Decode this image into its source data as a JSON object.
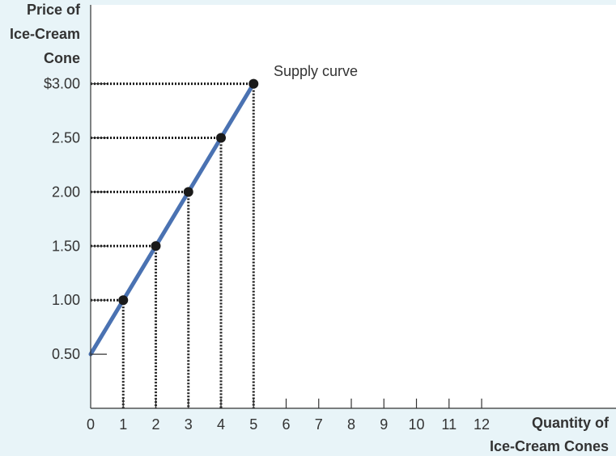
{
  "chart_data": {
    "type": "line",
    "title": "",
    "series": [
      {
        "name": "Supply curve",
        "x": [
          0,
          1,
          2,
          3,
          4,
          5
        ],
        "y": [
          0.5,
          1.0,
          1.5,
          2.0,
          2.5,
          3.0
        ]
      }
    ],
    "points": [
      {
        "x": 1,
        "y": 1.0
      },
      {
        "x": 2,
        "y": 1.5
      },
      {
        "x": 3,
        "y": 2.0
      },
      {
        "x": 4,
        "y": 2.5
      },
      {
        "x": 5,
        "y": 3.0
      }
    ],
    "xlabel_lines": [
      "Quantity of",
      "Ice-Cream Cones"
    ],
    "ylabel_lines": [
      "Price of",
      "Ice-Cream",
      "Cone"
    ],
    "x_ticks": [
      0,
      1,
      2,
      3,
      4,
      5,
      6,
      7,
      8,
      9,
      10,
      11,
      12
    ],
    "x_tick_labels": [
      "0",
      "1",
      "2",
      "3",
      "4",
      "5",
      "6",
      "7",
      "8",
      "9",
      "10",
      "11",
      "12"
    ],
    "y_ticks": [
      0.5,
      1.0,
      1.5,
      2.0,
      2.5,
      3.0
    ],
    "y_tick_labels": [
      "0.50",
      "1.00",
      "1.50",
      "2.00",
      "2.50",
      "$3.00"
    ],
    "xlim": [
      0,
      16
    ],
    "ylim": [
      0,
      3.25
    ],
    "grid": false,
    "annotation": "Supply curve",
    "colors": {
      "background": "#e8f4f8",
      "plot_background": "#ffffff",
      "line": "#4a72b2",
      "point": "#1a1a1a",
      "guide": "#1a1a1a",
      "axis": "#333333",
      "text": "#333333"
    }
  }
}
